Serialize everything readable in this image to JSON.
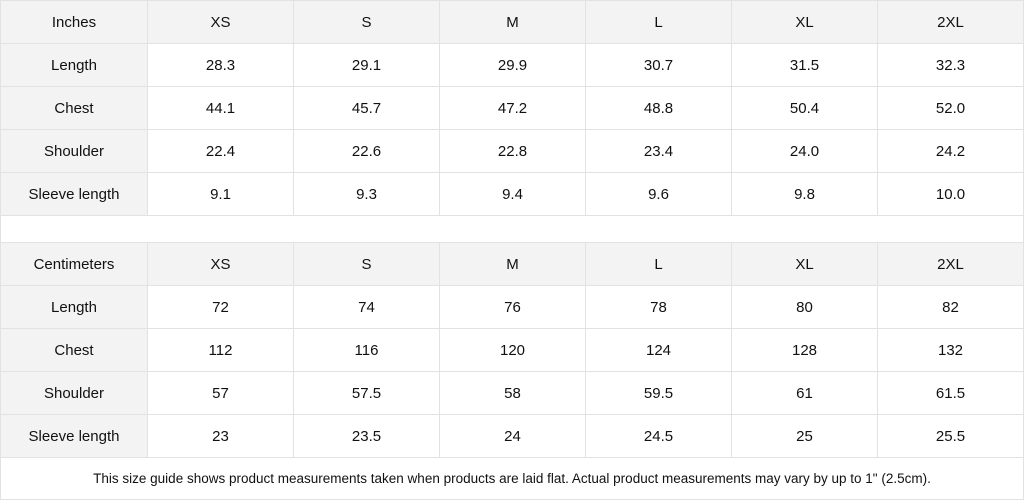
{
  "inches": {
    "header": [
      "Inches",
      "XS",
      "S",
      "M",
      "L",
      "XL",
      "2XL"
    ],
    "rows": [
      {
        "label": "Length",
        "values": [
          "28.3",
          "29.1",
          "29.9",
          "30.7",
          "31.5",
          "32.3"
        ]
      },
      {
        "label": "Chest",
        "values": [
          "44.1",
          "45.7",
          "47.2",
          "48.8",
          "50.4",
          "52.0"
        ]
      },
      {
        "label": "Shoulder",
        "values": [
          "22.4",
          "22.6",
          "22.8",
          "23.4",
          "24.0",
          "24.2"
        ]
      },
      {
        "label": "Sleeve length",
        "values": [
          "9.1",
          "9.3",
          "9.4",
          "9.6",
          "9.8",
          "10.0"
        ]
      }
    ]
  },
  "centimeters": {
    "header": [
      "Centimeters",
      "XS",
      "S",
      "M",
      "L",
      "XL",
      "2XL"
    ],
    "rows": [
      {
        "label": "Length",
        "values": [
          "72",
          "74",
          "76",
          "78",
          "80",
          "82"
        ]
      },
      {
        "label": "Chest",
        "values": [
          "112",
          "116",
          "120",
          "124",
          "128",
          "132"
        ]
      },
      {
        "label": "Shoulder",
        "values": [
          "57",
          "57.5",
          "58",
          "59.5",
          "61",
          "61.5"
        ]
      },
      {
        "label": "Sleeve length",
        "values": [
          "23",
          "23.5",
          "24",
          "24.5",
          "25",
          "25.5"
        ]
      }
    ]
  },
  "note": "This size guide shows product measurements taken when products are laid flat.  Actual product measurements may vary by up to 1\" (2.5cm).",
  "colors": {
    "header_bg": "#f3f3f3",
    "border": "#e2e2e2"
  }
}
